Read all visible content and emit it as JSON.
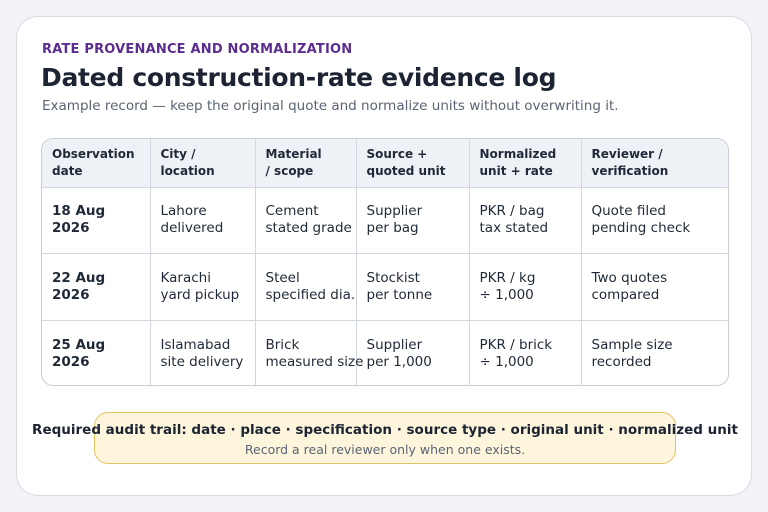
{
  "header": {
    "eyebrow": "RATE PROVENANCE AND NORMALIZATION",
    "title": "Dated construction-rate evidence log",
    "subtitle": "Example record — keep the original quote and normalize units without overwriting it."
  },
  "table": {
    "columns": [
      [
        "Observation",
        "date"
      ],
      [
        "City /",
        "location"
      ],
      [
        "Material",
        "/ scope"
      ],
      [
        "Source +",
        "quoted unit"
      ],
      [
        "Normalized",
        "unit + rate"
      ],
      [
        "Reviewer /",
        "verification"
      ]
    ],
    "rows": [
      [
        [
          "18 Aug",
          "2026"
        ],
        [
          "Lahore",
          "delivered"
        ],
        [
          "Cement",
          "stated grade"
        ],
        [
          "Supplier",
          "per bag"
        ],
        [
          "PKR / bag",
          "tax stated"
        ],
        [
          "Quote filed",
          "pending check"
        ]
      ],
      [
        [
          "22 Aug",
          "2026"
        ],
        [
          "Karachi",
          "yard pickup"
        ],
        [
          "Steel",
          "specified dia."
        ],
        [
          "Stockist",
          "per tonne"
        ],
        [
          "PKR / kg",
          "÷ 1,000"
        ],
        [
          "Two quotes",
          "compared"
        ]
      ],
      [
        [
          "25 Aug",
          "2026"
        ],
        [
          "Islamabad",
          "site delivery"
        ],
        [
          "Brick",
          "measured size"
        ],
        [
          "Supplier",
          "per 1,000"
        ],
        [
          "PKR / brick",
          "÷ 1,000"
        ],
        [
          "Sample size",
          "recorded"
        ]
      ]
    ]
  },
  "banner": {
    "main": "Required audit trail: date · place · specification · source type · original unit · normalized unit",
    "sub": "Record a real reviewer only when one exists."
  }
}
